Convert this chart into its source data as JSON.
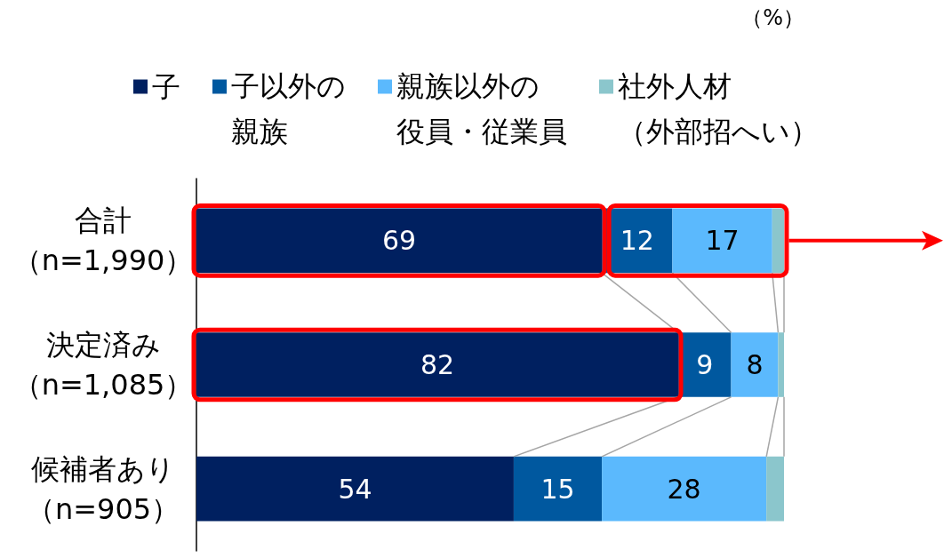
{
  "chart_data": {
    "type": "bar",
    "orientation": "horizontal",
    "stacked": true,
    "categories": [
      "合計（n=1,990）",
      "決定済み（n=1,085）",
      "候補者あり（n=905）"
    ],
    "series": [
      {
        "name": "子",
        "color": "#002060",
        "values": [
          69,
          82,
          54
        ],
        "value_labels": [
          "69",
          "82",
          "54"
        ]
      },
      {
        "name": "子以外の親族",
        "color": "#00589f",
        "values": [
          12,
          9,
          15
        ],
        "value_labels": [
          "12",
          "9",
          "15"
        ]
      },
      {
        "name": "親族以外の役員・従業員",
        "color": "#5bb9fd",
        "values": [
          17,
          8,
          28
        ],
        "value_labels": [
          "17",
          "8",
          "28"
        ]
      },
      {
        "name": "社外人材（外部招へい）",
        "color": "#8bc6cc",
        "values": [
          2,
          1,
          3
        ]
      }
    ],
    "legend": "top",
    "annotations": [
      "（%）"
    ]
  }
}
